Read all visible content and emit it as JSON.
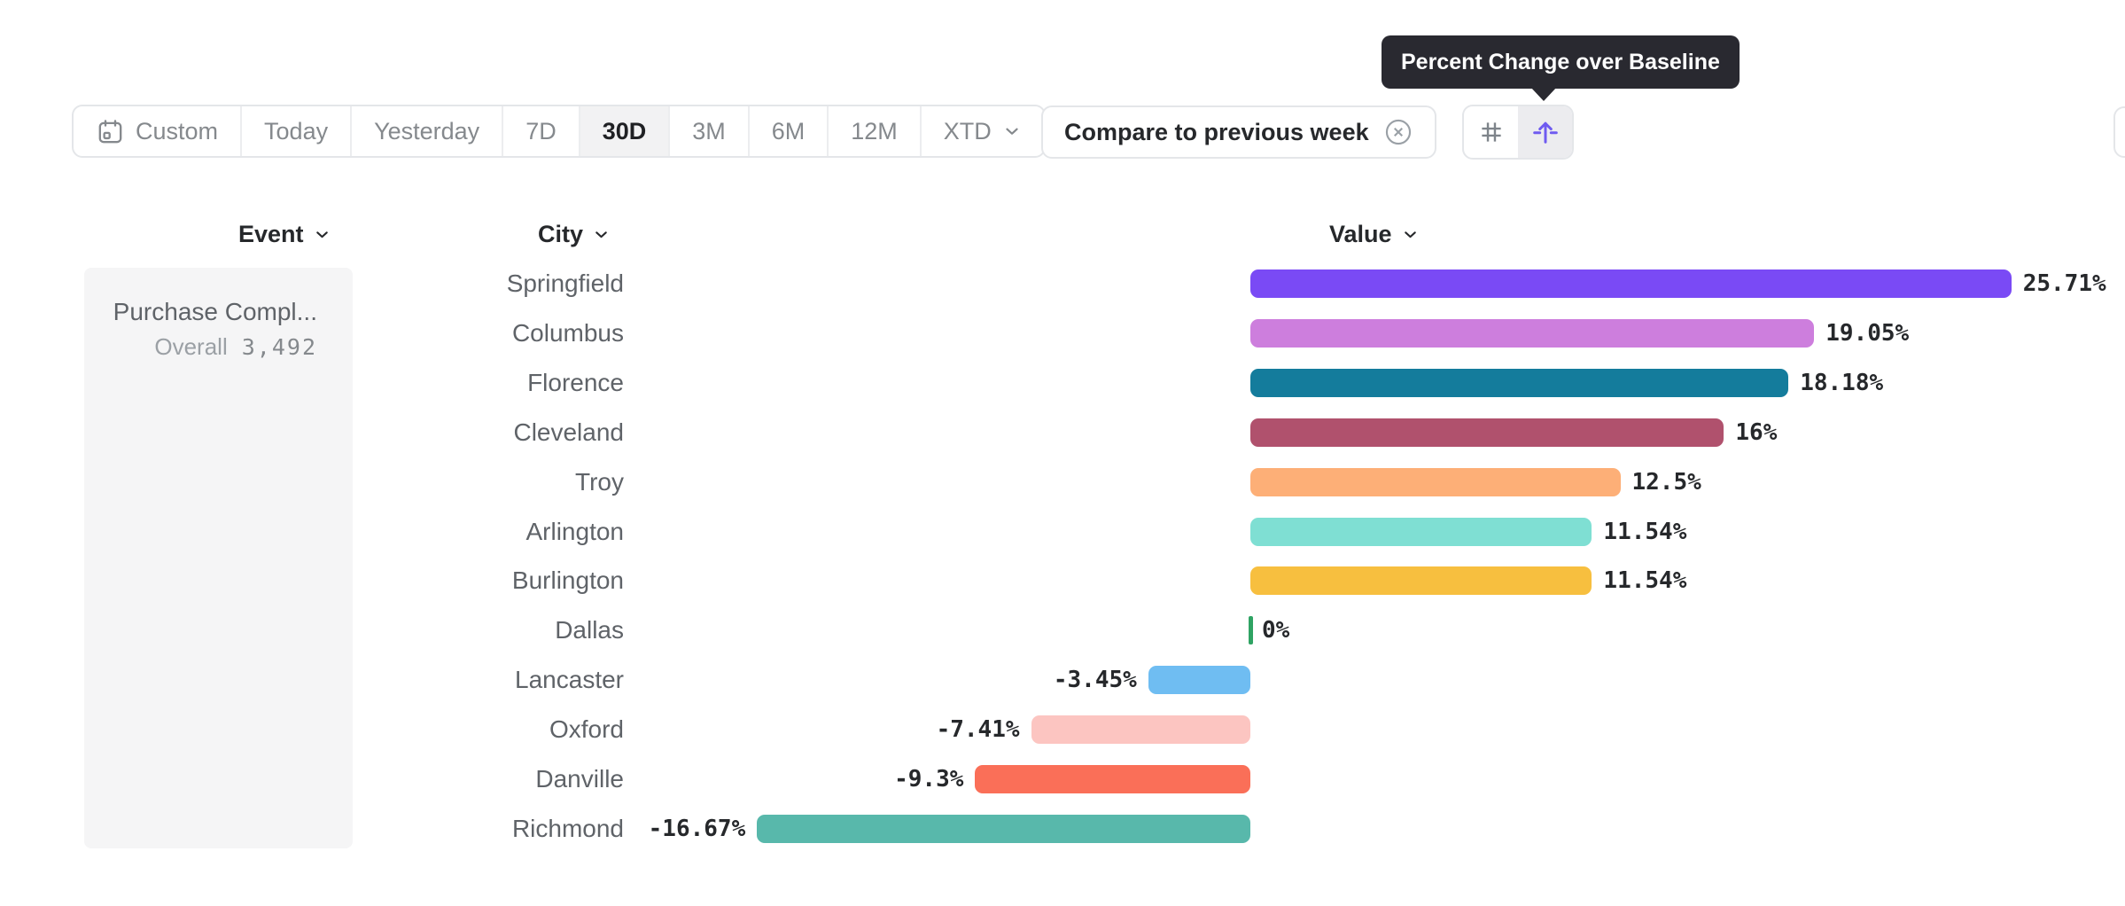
{
  "toolbar": {
    "date_presets": [
      {
        "label": "Custom",
        "icon": "calendar"
      },
      {
        "label": "Today"
      },
      {
        "label": "Yesterday"
      },
      {
        "label": "7D"
      },
      {
        "label": "30D",
        "active": true
      },
      {
        "label": "3M"
      },
      {
        "label": "6M"
      },
      {
        "label": "12M"
      },
      {
        "label": "XTD",
        "chevron": true
      }
    ],
    "compare_button": {
      "label": "Compare to previous week",
      "close_icon": "circle-x"
    },
    "view_toggle": {
      "left_icon": "number-grid",
      "right_icon": "percent-change-baseline",
      "active_side": "right",
      "accent_color": "#6F5BF0",
      "active_bg": "#ECECEF"
    }
  },
  "tooltip": {
    "text": "Percent Change over Baseline"
  },
  "table_headers": [
    {
      "label": "Event"
    },
    {
      "label": "City"
    },
    {
      "label": "Value"
    }
  ],
  "event_panel": {
    "name": "Purchase Compl...",
    "overall_label": "Overall",
    "overall_value": "3,492"
  },
  "chart_data": {
    "type": "bar",
    "orientation": "horizontal",
    "title": "Percent Change over Baseline",
    "unit": "%",
    "categories": [
      "Springfield",
      "Columbus",
      "Florence",
      "Cleveland",
      "Troy",
      "Arlington",
      "Burlington",
      "Dallas",
      "Lancaster",
      "Oxford",
      "Danville",
      "Richmond"
    ],
    "values": [
      25.71,
      19.05,
      18.18,
      16,
      12.5,
      11.54,
      11.54,
      0,
      -3.45,
      -7.41,
      -9.3,
      -16.67
    ],
    "value_labels": [
      "25.71%",
      "19.05%",
      "18.18%",
      "16%",
      "12.5%",
      "11.54%",
      "11.54%",
      "0%",
      "-3.45%",
      "-7.41%",
      "-9.3%",
      "-16.67%"
    ],
    "bar_colors": [
      "#7A4AF5",
      "#CD7EDD",
      "#147C9C",
      "#B0516D",
      "#FDAF77",
      "#7FDFD3",
      "#F7BF3F",
      "#2FA363",
      "#6FBDF2",
      "#FCC5C1",
      "#FA6F58",
      "#58B8AB"
    ],
    "zero_tick_color": "#2FA363",
    "xlim": [
      -20,
      27
    ],
    "grid": false,
    "legend": false
  }
}
